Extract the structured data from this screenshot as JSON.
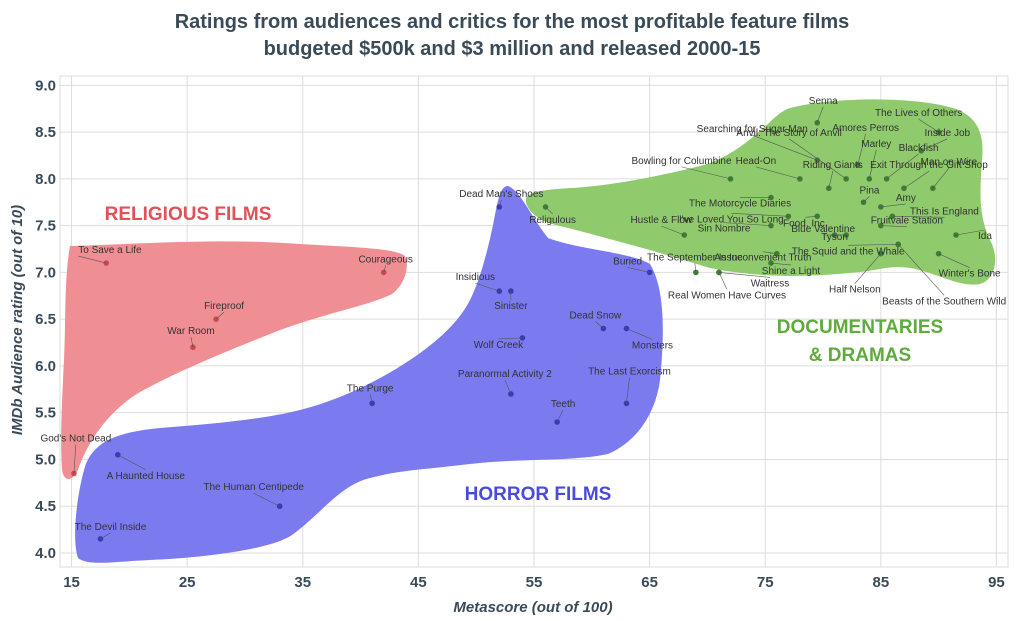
{
  "chart_data": {
    "type": "scatter",
    "title": "Ratings from audiences and critics for the most profitable feature films",
    "subtitle": "budgeted $500k and $3 million and released 2000-15",
    "xlabel": "Metascore (out of 100)",
    "ylabel": "IMDb Audience rating (out of 10)",
    "xlim": [
      14,
      96
    ],
    "ylim": [
      3.85,
      9.1
    ],
    "xticks": [
      15,
      25,
      35,
      45,
      55,
      65,
      75,
      85,
      95
    ],
    "yticks": [
      4.0,
      4.5,
      5.0,
      5.5,
      6.0,
      6.5,
      7.0,
      7.5,
      8.0,
      8.5,
      9.0
    ],
    "ytick_labels": [
      "4.0",
      "4.5",
      "5.0",
      "5.5",
      "6.0",
      "6.5",
      "7.0",
      "7.5",
      "8.0",
      "8.5",
      "9.0"
    ],
    "grid": true,
    "series": [
      {
        "name": "RELIGIOUS FILMS",
        "color": "#e2505a",
        "blob_color": "#f08f93",
        "dot_color": "#c74a52",
        "points": [
          {
            "label": "To Save a Life",
            "x": 18,
            "y": 7.1
          },
          {
            "label": "Courageous",
            "x": 42,
            "y": 7.0
          },
          {
            "label": "Fireproof",
            "x": 27.5,
            "y": 6.5
          },
          {
            "label": "War Room",
            "x": 25.5,
            "y": 6.2
          },
          {
            "label": "God's Not Dead",
            "x": 15.2,
            "y": 4.85
          }
        ]
      },
      {
        "name": "HORROR FILMS",
        "color": "#4a4ae0",
        "blob_color": "#7b7bef",
        "dot_color": "#3a3ab5",
        "points": [
          {
            "label": "Dead Man's Shoes",
            "x": 52,
            "y": 7.7
          },
          {
            "label": "Buried",
            "x": 65,
            "y": 7.0
          },
          {
            "label": "Insidious",
            "x": 52,
            "y": 6.8
          },
          {
            "label": "Sinister",
            "x": 53,
            "y": 6.8
          },
          {
            "label": "Dead Snow",
            "x": 61,
            "y": 6.4
          },
          {
            "label": "Monsters",
            "x": 63,
            "y": 6.4
          },
          {
            "label": "Wolf Creek",
            "x": 54,
            "y": 6.3
          },
          {
            "label": "Paranormal Activity 2",
            "x": 53,
            "y": 5.7
          },
          {
            "label": "The Purge",
            "x": 41,
            "y": 5.6
          },
          {
            "label": "The Last Exorcism",
            "x": 63,
            "y": 5.6
          },
          {
            "label": "Teeth",
            "x": 57,
            "y": 5.4
          },
          {
            "label": "A Haunted House",
            "x": 19,
            "y": 5.05
          },
          {
            "label": "The Human Centipede",
            "x": 33,
            "y": 4.5
          },
          {
            "label": "The Devil Inside",
            "x": 17.5,
            "y": 4.15
          }
        ]
      },
      {
        "name": "DOCUMENTARIES & DRAMAS",
        "name_line1": "DOCUMENTARIES",
        "name_line2": "& DRAMAS",
        "color": "#5fab3e",
        "blob_color": "#8fca6d",
        "dot_color": "#3f7d34",
        "points": [
          {
            "label": "Religulous",
            "x": 56,
            "y": 7.7
          },
          {
            "label": "Senna",
            "x": 79.5,
            "y": 8.6
          },
          {
            "label": "Amores Perros",
            "x": 83,
            "y": 8.15
          },
          {
            "label": "The Lives of Others",
            "x": 90,
            "y": 8.5
          },
          {
            "label": "Anvil: The Story of Anvil",
            "x": 82,
            "y": 8.0
          },
          {
            "label": "Blackfish",
            "x": 85.5,
            "y": 8.0
          },
          {
            "label": "Inside Job",
            "x": 88.5,
            "y": 8.3
          },
          {
            "label": "Searching for Sugar Man",
            "x": 79.5,
            "y": 8.2
          },
          {
            "label": "Marley",
            "x": 84,
            "y": 8.0
          },
          {
            "label": "Exit Through the Gift Shop",
            "x": 87,
            "y": 7.9
          },
          {
            "label": "Bowling for Columbine",
            "x": 72,
            "y": 8.0
          },
          {
            "label": "Head-On",
            "x": 78,
            "y": 8.0
          },
          {
            "label": "Riding Giants",
            "x": 80.5,
            "y": 7.9
          },
          {
            "label": "Man on Wire",
            "x": 89.5,
            "y": 7.9
          },
          {
            "label": "The Motorcycle Diaries",
            "x": 75.5,
            "y": 7.8
          },
          {
            "label": "Pina",
            "x": 83.5,
            "y": 7.75
          },
          {
            "label": "Amy",
            "x": 85,
            "y": 7.7
          },
          {
            "label": "This Is England",
            "x": 86,
            "y": 7.6
          },
          {
            "label": "I've Loved You So Long",
            "x": 77,
            "y": 7.6
          },
          {
            "label": "Food, Inc.",
            "x": 79.5,
            "y": 7.6
          },
          {
            "label": "Sin Nombre",
            "x": 75.5,
            "y": 7.5
          },
          {
            "label": "Tyson",
            "x": 81,
            "y": 7.4
          },
          {
            "label": "Fruitvale Station",
            "x": 85,
            "y": 7.5
          },
          {
            "label": "Hustle & Flow",
            "x": 68,
            "y": 7.4
          },
          {
            "label": "Blue Valentine",
            "x": 82,
            "y": 7.4
          },
          {
            "label": "Ida",
            "x": 91.5,
            "y": 7.4
          },
          {
            "label": "An Inconvenient Truth",
            "x": 76,
            "y": 7.2
          },
          {
            "label": "The Squid and the Whale",
            "x": 86.5,
            "y": 7.3
          },
          {
            "label": "Winter's Bone",
            "x": 90,
            "y": 7.2
          },
          {
            "label": "The September Issue",
            "x": 69,
            "y": 7.0
          },
          {
            "label": "Shine a Light",
            "x": 75.5,
            "y": 7.1
          },
          {
            "label": "Waitress",
            "x": 71,
            "y": 7.0
          },
          {
            "label": "Half Nelson",
            "x": 85,
            "y": 7.2
          },
          {
            "label": "Real Women Have Curves",
            "x": 71,
            "y": 7.0
          },
          {
            "label": "Beasts of the Southern Wild",
            "x": 86.5,
            "y": 7.3
          }
        ]
      }
    ]
  }
}
